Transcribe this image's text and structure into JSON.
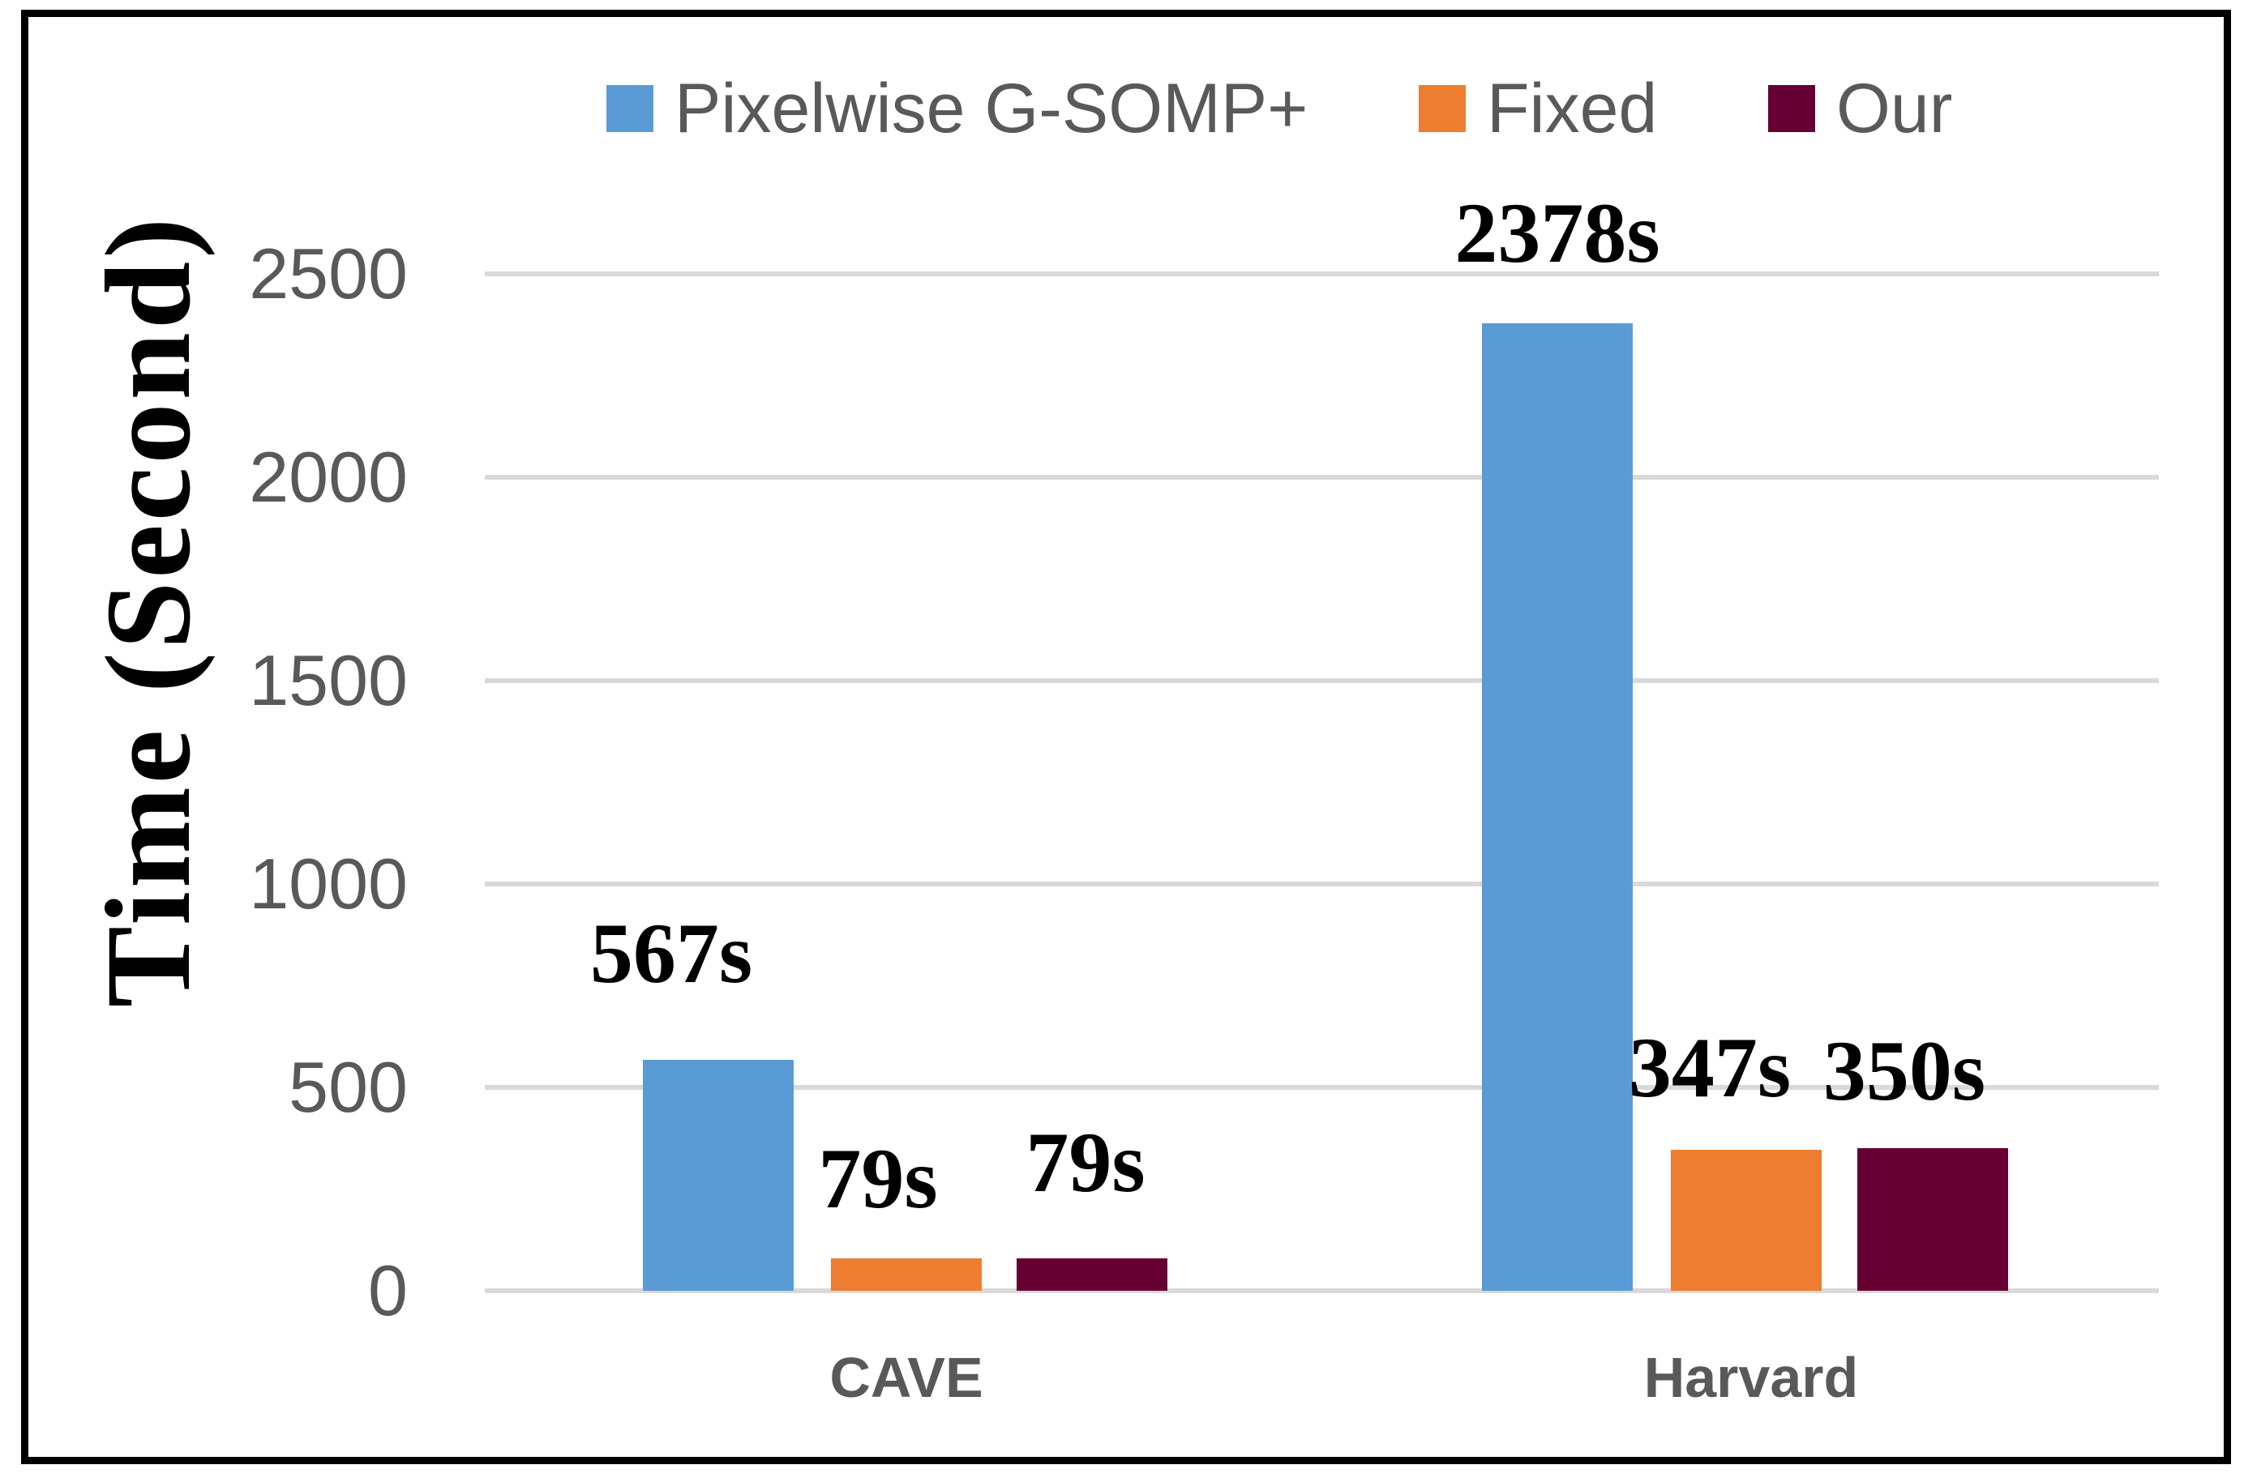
{
  "chart_data": {
    "type": "bar",
    "title": "",
    "ylabel": "Time (Second)",
    "xlabel": "",
    "categories": [
      "CAVE",
      "Harvard"
    ],
    "series": [
      {
        "name": "Pixelwise G-SOMP+",
        "color": "#5B9BD5",
        "values": [
          567,
          2378
        ],
        "labels": [
          "567s",
          "2378s"
        ]
      },
      {
        "name": "Fixed",
        "color": "#ED7D31",
        "values": [
          79,
          347
        ],
        "labels": [
          "79s",
          "347s"
        ]
      },
      {
        "name": "Our",
        "color": "#660033",
        "values": [
          79,
          350
        ],
        "labels": [
          "79s",
          "350s"
        ]
      }
    ],
    "ylim": [
      0,
      2500
    ],
    "yticks": [
      0,
      500,
      1000,
      1500,
      2000,
      2500
    ],
    "grid": true,
    "legend_position": "top"
  },
  "colors": {
    "gridline": "#D9D9D9",
    "tick_text": "#595959",
    "legend_text": "#595959",
    "category_text": "#595959",
    "data_label": "#000000",
    "frame_border": "#000000",
    "background": "#FFFFFF"
  }
}
